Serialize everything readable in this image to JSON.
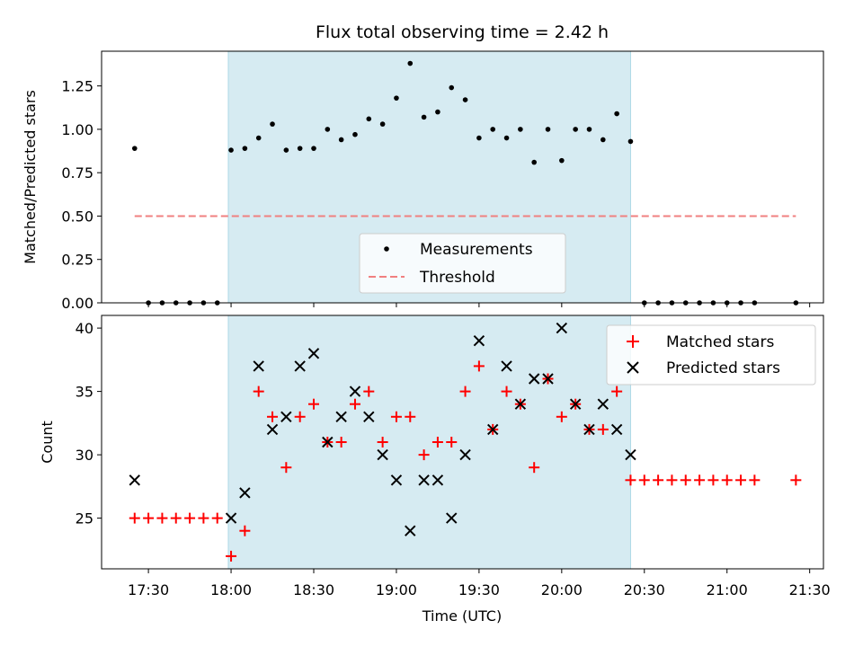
{
  "chart_data": [
    {
      "type": "scatter",
      "title": "Flux total observing time = 2.42 h",
      "xlabel": "",
      "ylabel": "Matched/Predicted stars",
      "xlim": [
        1033,
        1295
      ],
      "ylim": [
        0,
        1.45
      ],
      "yticks": [
        "0.00",
        "0.25",
        "0.50",
        "0.75",
        "1.00",
        "1.25"
      ],
      "shaded_interval": [
        1079,
        1225
      ],
      "threshold": {
        "name": "Threshold",
        "value": 0.5,
        "x_range": [
          1045,
          1285
        ],
        "color": "#f08080"
      },
      "series": [
        {
          "name": "Measurements",
          "color": "#000000",
          "x": [
            1045,
            1050,
            1055,
            1060,
            1065,
            1070,
            1075,
            1080,
            1085,
            1090,
            1095,
            1100,
            1105,
            1110,
            1115,
            1120,
            1125,
            1130,
            1135,
            1140,
            1145,
            1150,
            1155,
            1160,
            1165,
            1170,
            1175,
            1180,
            1185,
            1190,
            1195,
            1200,
            1205,
            1210,
            1215,
            1220,
            1225,
            1230,
            1235,
            1240,
            1245,
            1250,
            1255,
            1260,
            1265,
            1270,
            1285
          ],
          "y": [
            0.89,
            0,
            0,
            0,
            0,
            0,
            0,
            0.88,
            0.89,
            0.95,
            1.03,
            0.88,
            0.89,
            0.89,
            1.0,
            0.94,
            0.97,
            1.06,
            1.03,
            1.18,
            1.38,
            1.07,
            1.1,
            1.24,
            1.17,
            0.95,
            1.0,
            0.95,
            1.0,
            0.81,
            1.0,
            0.82,
            1.0,
            1.0,
            0.94,
            1.09,
            0.93,
            0,
            0,
            0,
            0,
            0,
            0,
            0,
            0,
            0,
            0
          ]
        }
      ],
      "legend": {
        "entries": [
          "Measurements",
          "Threshold"
        ],
        "position": "lower-center"
      }
    },
    {
      "type": "scatter",
      "xlabel": "Time (UTC)",
      "ylabel": "Count",
      "xlim": [
        1033,
        1295
      ],
      "ylim": [
        21,
        41
      ],
      "yticks": [
        "25",
        "30",
        "35",
        "40"
      ],
      "xticks": [
        "17:30",
        "18:00",
        "18:30",
        "19:00",
        "19:30",
        "20:00",
        "20:30",
        "21:00",
        "21:30"
      ],
      "xtick_values": [
        1050,
        1080,
        1110,
        1140,
        1170,
        1200,
        1230,
        1260,
        1290
      ],
      "shaded_interval": [
        1079,
        1225
      ],
      "series": [
        {
          "name": "Matched stars",
          "color": "#ff0000",
          "marker": "plus",
          "x": [
            1045,
            1050,
            1055,
            1060,
            1065,
            1070,
            1075,
            1080,
            1085,
            1090,
            1095,
            1100,
            1105,
            1110,
            1115,
            1120,
            1125,
            1130,
            1135,
            1140,
            1145,
            1150,
            1155,
            1160,
            1165,
            1170,
            1175,
            1180,
            1185,
            1190,
            1195,
            1200,
            1205,
            1210,
            1215,
            1220,
            1225,
            1230,
            1235,
            1240,
            1245,
            1250,
            1255,
            1260,
            1265,
            1270,
            1285
          ],
          "y": [
            25,
            25,
            25,
            25,
            25,
            25,
            25,
            22,
            24,
            35,
            33,
            29,
            33,
            34,
            31,
            31,
            34,
            35,
            31,
            33,
            33,
            30,
            31,
            31,
            35,
            37,
            32,
            35,
            34,
            29,
            36,
            33,
            34,
            32,
            32,
            35,
            28,
            28,
            28,
            28,
            28,
            28,
            28,
            28,
            28,
            28,
            28
          ]
        },
        {
          "name": "Predicted stars",
          "color": "#000000",
          "marker": "x",
          "x": [
            1045,
            1080,
            1085,
            1090,
            1095,
            1100,
            1105,
            1110,
            1115,
            1120,
            1125,
            1130,
            1135,
            1140,
            1145,
            1150,
            1155,
            1160,
            1165,
            1170,
            1175,
            1180,
            1185,
            1190,
            1195,
            1200,
            1205,
            1210,
            1215,
            1220,
            1225
          ],
          "y": [
            28,
            25,
            27,
            37,
            32,
            33,
            37,
            38,
            31,
            33,
            35,
            33,
            30,
            28,
            24,
            28,
            28,
            25,
            30,
            39,
            32,
            37,
            34,
            36,
            36,
            40,
            34,
            32,
            34,
            32,
            30
          ]
        }
      ],
      "legend": {
        "entries": [
          "Matched stars",
          "Predicted stars"
        ],
        "position": "top-right"
      }
    }
  ]
}
